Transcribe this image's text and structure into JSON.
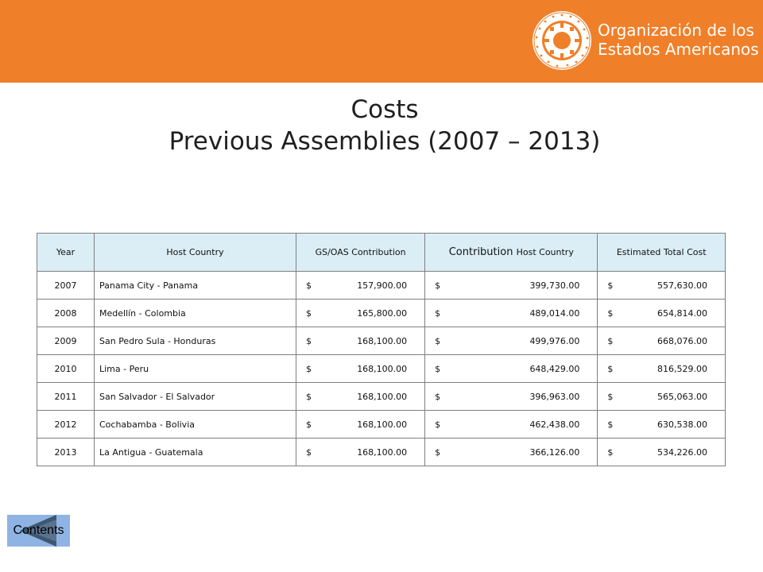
{
  "header": {
    "brand_color": "#f07f29",
    "org_name_line1": "Organización de los",
    "org_name_line2": "Estados Americanos",
    "logo": "oas-seal-logo"
  },
  "title": {
    "line1": "Costs",
    "line2": "Previous Assemblies (2007 – 2013)"
  },
  "table": {
    "header_bg": "#dbeef6",
    "columns": {
      "year": "Year",
      "host_country": "Host Country",
      "gs_oas": "GS/OAS Contribution",
      "contribution_host_main": "Contribution",
      "contribution_host_small": "Host Country",
      "estimated_total": "Estimated Total Cost"
    },
    "currency": "$",
    "rows": [
      {
        "year": "2007",
        "host": "Panama City - Panama",
        "gs": "157,900.00",
        "contrib": "399,730.00",
        "total": "557,630.00"
      },
      {
        "year": "2008",
        "host": "Medellín - Colombia",
        "gs": "165,800.00",
        "contrib": "489,014.00",
        "total": "654,814.00"
      },
      {
        "year": "2009",
        "host": "San Pedro Sula - Honduras",
        "gs": "168,100.00",
        "contrib": "499,976.00",
        "total": "668,076.00"
      },
      {
        "year": "2010",
        "host": "Lima - Peru",
        "gs": "168,100.00",
        "contrib": "648,429.00",
        "total": "816,529.00"
      },
      {
        "year": "2011",
        "host": "San Salvador - El Salvador",
        "gs": "168,100.00",
        "contrib": "396,963.00",
        "total": "565,063.00"
      },
      {
        "year": "2012",
        "host": "Cochabamba - Bolivia",
        "gs": "168,100.00",
        "contrib": "462,438.00",
        "total": "630,538.00"
      },
      {
        "year": "2013",
        "host": "La Antigua - Guatemala",
        "gs": "168,100.00",
        "contrib": "366,126.00",
        "total": "534,226.00"
      }
    ]
  },
  "nav": {
    "contents_label": "Contents",
    "icon": "back-arrow-icon"
  }
}
